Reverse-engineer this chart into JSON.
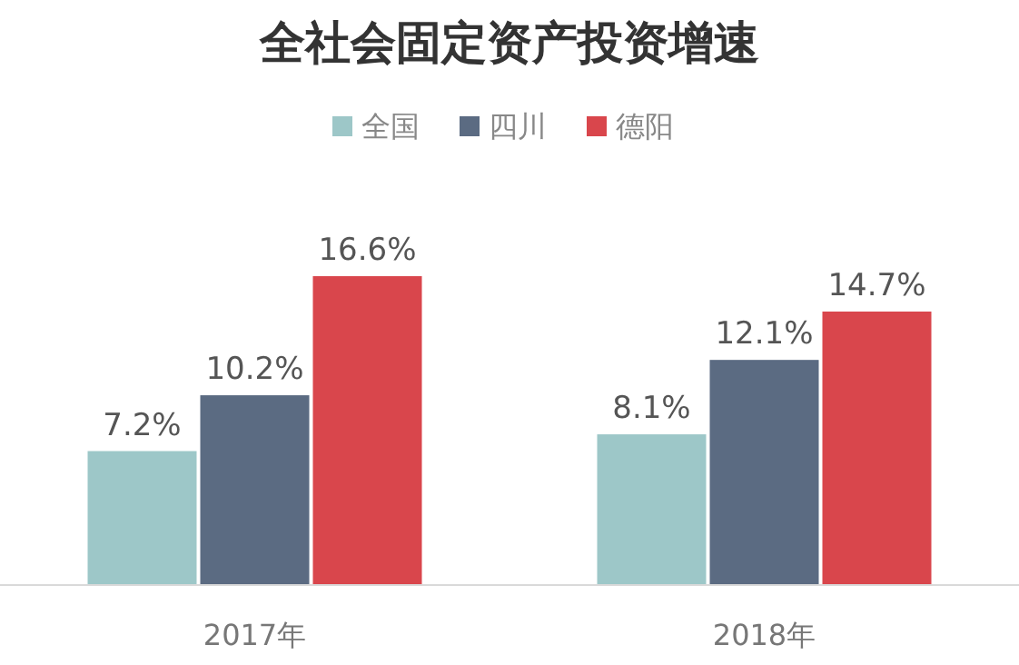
{
  "chart_data": {
    "type": "bar",
    "title": "全社会固定资产投资增速",
    "categories": [
      "2017年",
      "2018年"
    ],
    "series": [
      {
        "name": "全国",
        "color": "#9dc7c8",
        "values": [
          7.2,
          8.1
        ],
        "value_labels": [
          "7.2%",
          "8.1%"
        ]
      },
      {
        "name": "四川",
        "color": "#5b6b82",
        "values": [
          10.2,
          12.1
        ],
        "value_labels": [
          "10.2%",
          "12.1%"
        ]
      },
      {
        "name": "德阳",
        "color": "#d9464c",
        "values": [
          16.6,
          14.7
        ],
        "value_labels": [
          "16.6%",
          "14.7%"
        ]
      }
    ],
    "legend": "top"
  }
}
